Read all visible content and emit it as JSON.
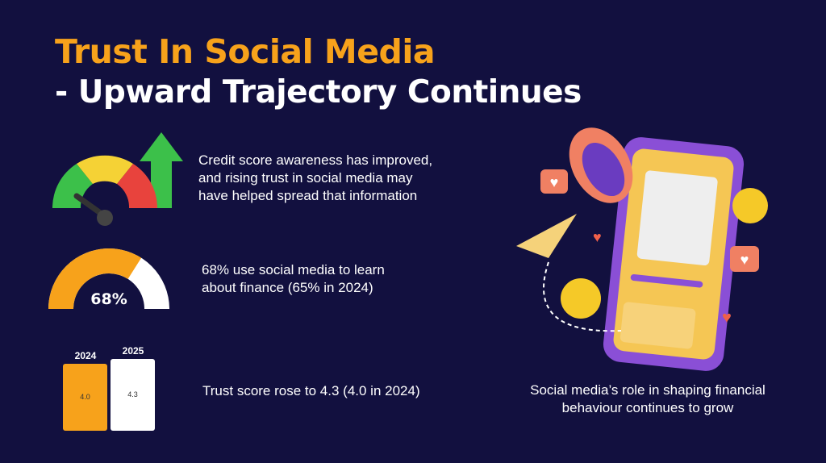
{
  "title": {
    "line1": "Trust In Social Media",
    "line2": "- Upward Trajectory Continues"
  },
  "points": [
    {
      "icon": "credit-score-gauge-icon",
      "text": "Credit score awareness has improved, and rising trust in social media may have helped spread that information"
    },
    {
      "icon": "percentage-gauge",
      "text": "68% use social media to learn about finance (65% in 2024)"
    },
    {
      "icon": "bar-chart",
      "text": "Trust score rose to 4.3 (4.0 in 2024)"
    }
  ],
  "caption": "Social media’s role in shaping financial behaviour continues to grow",
  "colors": {
    "background": "#12103f",
    "accent": "#f7a21b",
    "white": "#ffffff"
  },
  "chart_data": [
    {
      "type": "pie",
      "subtype": "half-donut gauge",
      "values": [
        68,
        32
      ],
      "label": "68%"
    },
    {
      "type": "bar",
      "categories": [
        "2024",
        "2025"
      ],
      "values": [
        4.0,
        4.3
      ],
      "data_labels": [
        "4.0",
        "4.3"
      ],
      "colors": [
        "#f7a21b",
        "#ffffff"
      ]
    }
  ]
}
